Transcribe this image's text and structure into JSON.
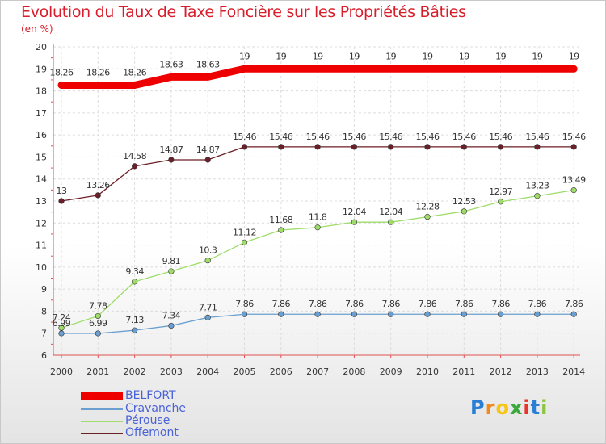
{
  "title": "Evolution du Taux de Taxe Foncière sur les Propriétés Bâties",
  "subtitle": "(en %)",
  "chart_data": {
    "type": "line",
    "title": "Evolution du Taux de Taxe Foncière sur les Propriétés Bâties",
    "ylabel": "(en %)",
    "xlabel": "",
    "ylim": [
      6,
      20
    ],
    "yticks": [
      "6",
      "7",
      "8",
      "9",
      "10",
      "11",
      "12",
      "13",
      "14",
      "15",
      "16",
      "17",
      "18",
      "19",
      "20"
    ],
    "categories": [
      "2000",
      "2001",
      "2002",
      "2003",
      "2004",
      "2005",
      "2006",
      "2007",
      "2008",
      "2009",
      "2010",
      "2011",
      "2012",
      "2013",
      "2014"
    ],
    "grid": true,
    "legend_position": "bottom-left",
    "series": [
      {
        "name": "BELFORT",
        "color": "#ee0000",
        "values": [
          18.26,
          18.26,
          18.26,
          18.63,
          18.63,
          19,
          19,
          19,
          19,
          19,
          19,
          19,
          19,
          19,
          19
        ],
        "labels": [
          "18.26",
          "18.26",
          "18.26",
          "18.63",
          "18.63",
          "19",
          "19",
          "19",
          "19",
          "19",
          "19",
          "19",
          "19",
          "19",
          "19"
        ]
      },
      {
        "name": "Cravanche",
        "color": "#6a9fcf",
        "values": [
          6.99,
          6.99,
          7.13,
          7.34,
          7.71,
          7.86,
          7.86,
          7.86,
          7.86,
          7.86,
          7.86,
          7.86,
          7.86,
          7.86,
          7.86
        ],
        "labels": [
          "6.99",
          "6.99",
          "7.13",
          "7.34",
          "7.71",
          "7.86",
          "7.86",
          "7.86",
          "7.86",
          "7.86",
          "7.86",
          "7.86",
          "7.86",
          "7.86",
          "7.86"
        ]
      },
      {
        "name": "Pérouse",
        "color": "#9fdc6a",
        "values": [
          7.24,
          7.78,
          9.34,
          9.81,
          10.3,
          11.12,
          11.68,
          11.8,
          12.04,
          12.04,
          12.28,
          12.53,
          12.97,
          13.23,
          13.49
        ],
        "labels": [
          "7.24",
          "7.78",
          "9.34",
          "9.81",
          "10.3",
          "11.12",
          "11.68",
          "11.8",
          "12.04",
          "12.04",
          "12.28",
          "12.53",
          "12.97",
          "13.23",
          "13.49"
        ]
      },
      {
        "name": "Offemont",
        "color": "#6b1f26",
        "values": [
          13,
          13.26,
          14.58,
          14.87,
          14.87,
          15.46,
          15.46,
          15.46,
          15.46,
          15.46,
          15.46,
          15.46,
          15.46,
          15.46,
          15.46
        ],
        "labels": [
          "13",
          "13.26",
          "14.58",
          "14.87",
          "14.87",
          "15.46",
          "15.46",
          "15.46",
          "15.46",
          "15.46",
          "15.46",
          "15.46",
          "15.46",
          "15.46",
          "15.46"
        ]
      }
    ]
  },
  "legend": {
    "items": [
      {
        "label": "BELFORT",
        "color": "#ee0000"
      },
      {
        "label": "Cravanche",
        "color": "#6a9fcf"
      },
      {
        "label": "Pérouse",
        "color": "#9fdc6a"
      },
      {
        "label": "Offemont",
        "color": "#6b1f26"
      }
    ]
  },
  "logo": {
    "letters": [
      "P",
      "r",
      "o",
      "x",
      "i",
      "t",
      "i"
    ],
    "colors": [
      "#2a7fd4",
      "#f08a1c",
      "#f5c518",
      "#3aa83a",
      "#e8342a",
      "#2a7fd4",
      "#8cc63f"
    ]
  }
}
